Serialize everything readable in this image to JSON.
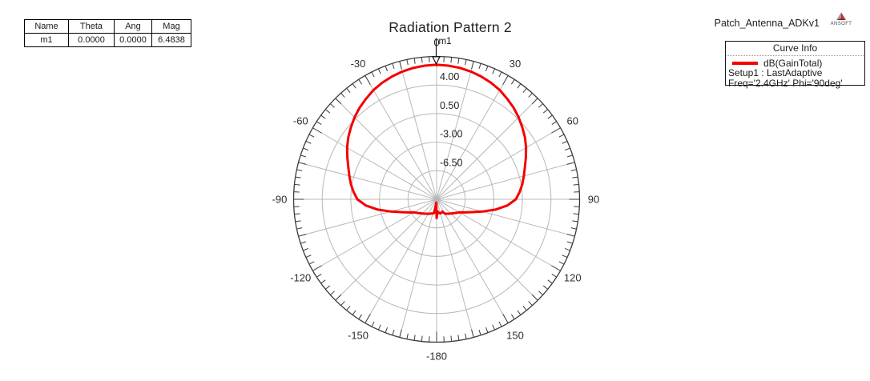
{
  "title": "Radiation Pattern 2",
  "project_name": "Patch_Antenna_ADKv1",
  "logo": {
    "text": "ANSOFT"
  },
  "marker_table": {
    "headers": [
      "Name",
      "Theta",
      "Ang",
      "Mag"
    ],
    "rows": [
      [
        "m1",
        "0.0000",
        "0.0000",
        "6.4838"
      ]
    ]
  },
  "legend": {
    "header": "Curve Info",
    "entries": [
      {
        "label": "dB(GainTotal)",
        "color": "#f40000"
      }
    ],
    "lines": [
      "Setup1 : LastAdaptive",
      "Freq='2.4GHz' Phi='90deg'"
    ]
  },
  "chart_data": {
    "type": "polar-line",
    "title": "Radiation Pattern 2",
    "units": "dB",
    "radial_axis": {
      "min": -10.0,
      "max": 7.5,
      "step": 3.5,
      "ring_labels": [
        {
          "value": 4.0,
          "label": "4.00"
        },
        {
          "value": 0.5,
          "label": "0.50"
        },
        {
          "value": -3.0,
          "label": "-3.00"
        },
        {
          "value": -6.5,
          "label": "-6.50"
        }
      ]
    },
    "angular_axis": {
      "label_step": 30,
      "spoke_step": 15,
      "tick_step": 3,
      "labels": [
        {
          "angle": 0,
          "label": "0"
        },
        {
          "angle": 30,
          "label": "30"
        },
        {
          "angle": 60,
          "label": "60"
        },
        {
          "angle": 90,
          "label": "90"
        },
        {
          "angle": 120,
          "label": "120"
        },
        {
          "angle": 150,
          "label": "150"
        },
        {
          "angle": 180,
          "label": "-180"
        },
        {
          "angle": -150,
          "label": "-150"
        },
        {
          "angle": -120,
          "label": "-120"
        },
        {
          "angle": -90,
          "label": "-90"
        },
        {
          "angle": -60,
          "label": "-60"
        },
        {
          "angle": -30,
          "label": "-30"
        }
      ]
    },
    "marker": {
      "name": "m1",
      "theta": 0.0,
      "ang": 0.0,
      "mag": 6.4838
    },
    "series": [
      {
        "name": "dB(GainTotal)",
        "color": "#f40000",
        "points": [
          [
            -180,
            -7.7
          ],
          [
            -175,
            -9.6
          ],
          [
            -170,
            -8.3
          ],
          [
            -165,
            -8.2
          ],
          [
            -160,
            -8.15
          ],
          [
            -155,
            -8.05
          ],
          [
            -150,
            -7.95
          ],
          [
            -145,
            -7.85
          ],
          [
            -140,
            -7.7
          ],
          [
            -135,
            -7.55
          ],
          [
            -130,
            -7.35
          ],
          [
            -125,
            -7.1
          ],
          [
            -120,
            -6.8
          ],
          [
            -115,
            -6.2
          ],
          [
            -110,
            -5.4
          ],
          [
            -105,
            -4.2
          ],
          [
            -100,
            -2.7
          ],
          [
            -95,
            -1.3
          ],
          [
            -90,
            -0.3
          ],
          [
            -85,
            0.2
          ],
          [
            -80,
            0.65
          ],
          [
            -75,
            1.05
          ],
          [
            -70,
            1.5
          ],
          [
            -65,
            2.05
          ],
          [
            -60,
            2.65
          ],
          [
            -55,
            3.2
          ],
          [
            -50,
            3.7
          ],
          [
            -45,
            4.2
          ],
          [
            -40,
            4.65
          ],
          [
            -35,
            5.05
          ],
          [
            -30,
            5.45
          ],
          [
            -25,
            5.75
          ],
          [
            -20,
            6.0
          ],
          [
            -15,
            6.2
          ],
          [
            -10,
            6.35
          ],
          [
            -5,
            6.44
          ],
          [
            0,
            6.4838
          ],
          [
            5,
            6.44
          ],
          [
            10,
            6.35
          ],
          [
            15,
            6.2
          ],
          [
            20,
            6.0
          ],
          [
            25,
            5.75
          ],
          [
            30,
            5.45
          ],
          [
            35,
            5.05
          ],
          [
            40,
            4.65
          ],
          [
            45,
            4.2
          ],
          [
            50,
            3.7
          ],
          [
            55,
            3.2
          ],
          [
            60,
            2.65
          ],
          [
            65,
            2.05
          ],
          [
            70,
            1.5
          ],
          [
            75,
            1.05
          ],
          [
            80,
            0.65
          ],
          [
            85,
            0.2
          ],
          [
            90,
            -0.3
          ],
          [
            95,
            -1.3
          ],
          [
            100,
            -2.7
          ],
          [
            105,
            -4.2
          ],
          [
            110,
            -5.4
          ],
          [
            115,
            -6.2
          ],
          [
            120,
            -6.8
          ],
          [
            125,
            -7.1
          ],
          [
            130,
            -7.35
          ],
          [
            135,
            -7.55
          ],
          [
            140,
            -7.7
          ],
          [
            145,
            -7.85
          ],
          [
            150,
            -7.95
          ],
          [
            155,
            -8.35
          ],
          [
            160,
            -8.25
          ],
          [
            165,
            -8.2
          ],
          [
            170,
            -8.3
          ],
          [
            175,
            -8.5
          ],
          [
            180,
            -7.7
          ]
        ]
      }
    ],
    "colors": {
      "grid": "#b8b8b8",
      "axis": "#3c3c3c",
      "text": "#2d2d2d"
    }
  }
}
